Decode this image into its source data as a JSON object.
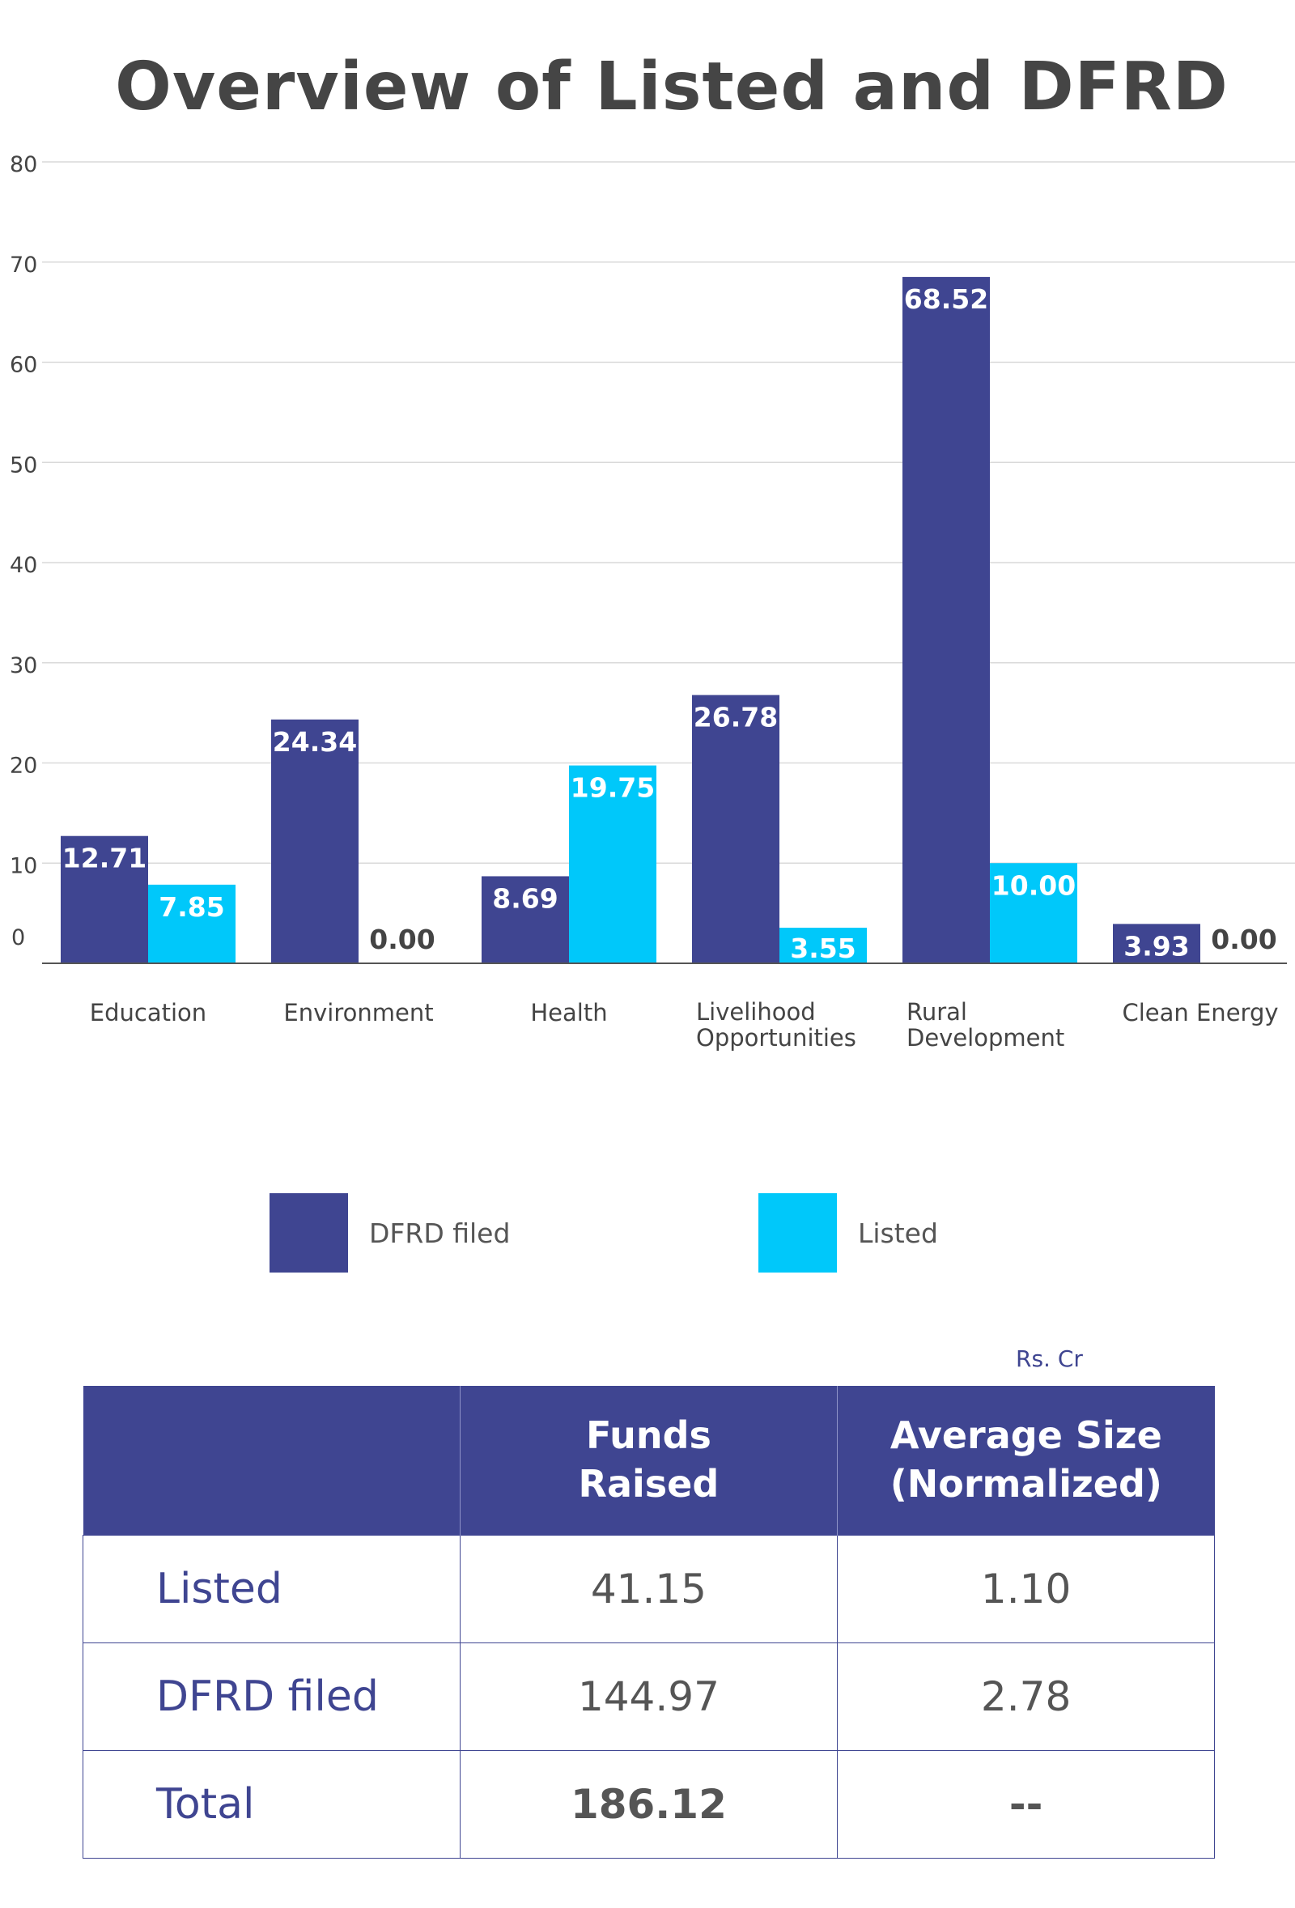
{
  "chart_data": {
    "type": "bar",
    "title": "Overview of Listed and DFRD",
    "categories": [
      "Education",
      "Environment",
      "Health",
      "Livelihood Opportunities",
      "Rural Development",
      "Clean Energy"
    ],
    "category_lines": [
      [
        "Education"
      ],
      [
        "Environment"
      ],
      [
        "Health"
      ],
      [
        "Livelihood",
        "Opportunities"
      ],
      [
        "Rural",
        "Development"
      ],
      [
        "Clean Energy"
      ]
    ],
    "series": [
      {
        "name": "DFRD filed",
        "color": "#3f4591",
        "values": [
          12.71,
          24.34,
          8.69,
          26.78,
          68.52,
          3.93
        ],
        "labels": [
          "12.71",
          "24.34",
          "8.69",
          "26.78",
          "68.52",
          "3.93"
        ]
      },
      {
        "name": "Listed",
        "color": "#00c8fa",
        "values": [
          7.85,
          0.0,
          19.75,
          3.55,
          10.0,
          0.0
        ],
        "labels": [
          "7.85",
          "0.00",
          "19.75",
          "3.55",
          "10.00",
          "0.00"
        ]
      }
    ],
    "ylim": [
      0,
      80
    ],
    "yticks": [
      0,
      10,
      20,
      30,
      40,
      50,
      60,
      70,
      80
    ],
    "grid": true,
    "legend_position": "bottom"
  },
  "legend": {
    "items": [
      {
        "label": "DFRD filed",
        "color": "#3f4591"
      },
      {
        "label": "Listed",
        "color": "#00c8fa"
      }
    ]
  },
  "table": {
    "unit": "Rs. Cr",
    "headers": [
      "",
      "Funds Raised",
      "Average Size (Normalized)"
    ],
    "header_lines": [
      [
        ""
      ],
      [
        "Funds",
        "Raised"
      ],
      [
        "Average Size",
        "(Normalized)"
      ]
    ],
    "rows": [
      {
        "label": "Listed",
        "funds": "41.15",
        "avg": "1.10"
      },
      {
        "label": "DFRD filed",
        "funds": "144.97",
        "avg": "2.78"
      },
      {
        "label": "Total",
        "funds": "186.12",
        "avg": "--"
      }
    ]
  }
}
